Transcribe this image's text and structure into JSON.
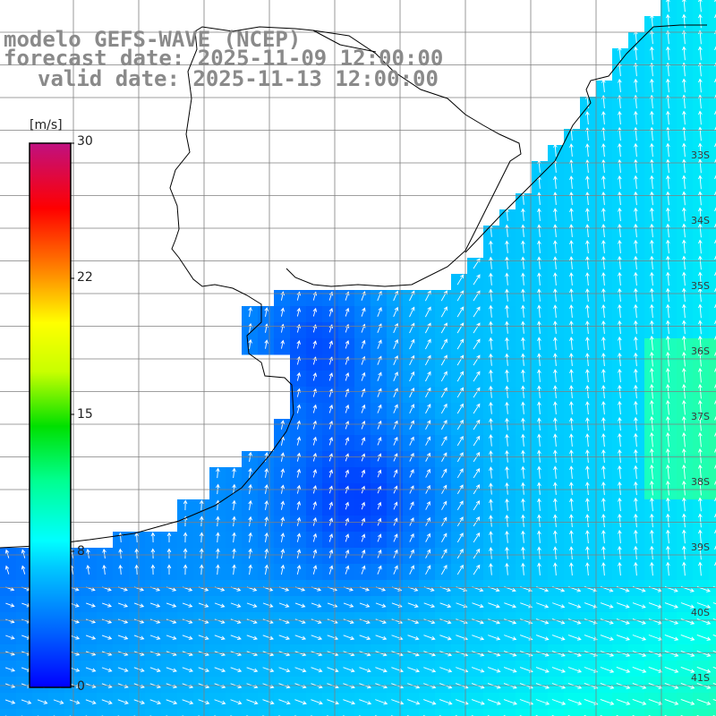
{
  "title": {
    "model": "modelo GEFS-WAVE (NCEP)",
    "forecast": "forecast date: 2025-11-09 12:00:00",
    "valid": "valid date: 2025-11-13 12:00:00"
  },
  "colorbar": {
    "unit": "[m/s]",
    "ticks": [
      "30",
      "22",
      "15",
      "8",
      "0"
    ],
    "colors": [
      "#0000ff",
      "#0080ff",
      "#00ffff",
      "#00ff80",
      "#00ff00",
      "#80ff00",
      "#ffff00",
      "#ff8000",
      "#ff0000",
      "#ff0080",
      "#c00080"
    ]
  },
  "lat_labels": [
    "33S",
    "34S",
    "35S",
    "36S",
    "37S",
    "38S",
    "39S",
    "40S",
    "41S"
  ],
  "colors": {
    "land": "#ffffff",
    "grid": "#7f7f7f",
    "coast": "#000000",
    "arrow": "#ffffff",
    "title": "#8a8a8a"
  },
  "arrow_icon": "wind-arrow-icon"
}
